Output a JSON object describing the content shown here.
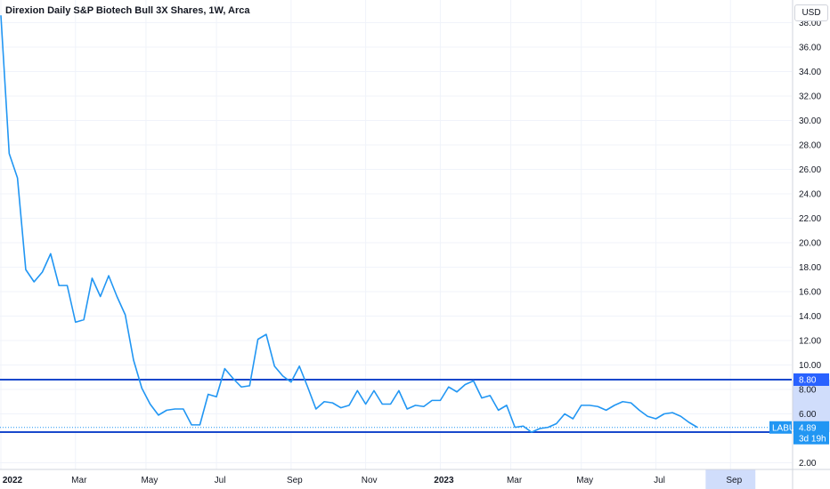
{
  "title": "Direxion Daily S&P Biotech Bull 3X Shares, 1W, Arca",
  "currency": "USD",
  "colors": {
    "line": "#2196f3",
    "hline": "#1848cc",
    "grid": "#f0f3fa",
    "zone": "#d0ddfb",
    "label_bg": "#2962ff"
  },
  "chart_data": {
    "type": "line",
    "title": "Direxion Daily S&P Biotech Bull 3X Shares, 1W, Arca",
    "ylim": [
      2,
      38
    ],
    "grid": true,
    "y_ticks": [
      "2.00",
      "6.00",
      "8.00",
      "10.00",
      "12.00",
      "14.00",
      "16.00",
      "18.00",
      "20.00",
      "22.00",
      "24.00",
      "26.00",
      "28.00",
      "30.00",
      "32.00",
      "34.00",
      "36.00",
      "38.00"
    ],
    "x_tick_labels": [
      {
        "label": "2022",
        "week": 0,
        "bold": true
      },
      {
        "label": "Mar",
        "week": 9
      },
      {
        "label": "May",
        "week": 17.5
      },
      {
        "label": "Jul",
        "week": 26
      },
      {
        "label": "Sep",
        "week": 35
      },
      {
        "label": "Nov",
        "week": 44
      },
      {
        "label": "2023",
        "week": 53,
        "bold": true
      },
      {
        "label": "Mar",
        "week": 61.5
      },
      {
        "label": "May",
        "week": 70
      },
      {
        "label": "Jul",
        "week": 79
      },
      {
        "label": "Sep",
        "week": 88
      }
    ],
    "series": [
      {
        "values": [
          38.6,
          27.3,
          25.3,
          17.8,
          16.8,
          17.6,
          19.1,
          16.5,
          16.5,
          13.5,
          13.7,
          17.1,
          15.6,
          17.3,
          15.6,
          14.1,
          10.4,
          8.1,
          6.8,
          5.9,
          6.3,
          6.4,
          6.4,
          5.1,
          5.1,
          7.6,
          7.4,
          9.7,
          8.9,
          8.2,
          8.3,
          12.1,
          12.5,
          9.9,
          9.1,
          8.6,
          9.9,
          8.2,
          6.4,
          7.0,
          6.9,
          6.5,
          6.7,
          7.9,
          6.8,
          7.9,
          6.8,
          6.8,
          7.9,
          6.4,
          6.7,
          6.6,
          7.1,
          7.1,
          8.2,
          7.8,
          8.4,
          8.7,
          7.3,
          7.5,
          6.3,
          6.7,
          4.9,
          5.0,
          4.5,
          4.8,
          4.9,
          5.2,
          6.0,
          5.6,
          6.7,
          6.7,
          6.6,
          6.3,
          6.7,
          7.0,
          6.9,
          6.3,
          5.8,
          5.6,
          6.0,
          6.1,
          5.8,
          5.3,
          4.9
        ]
      }
    ],
    "horizontal_lines": [
      {
        "value": 8.8,
        "label": "8.80"
      },
      {
        "value": 4.51,
        "label": "4.51"
      }
    ],
    "last_price": {
      "symbol": "LABU",
      "value": "4.89",
      "countdown": "3d 19h"
    }
  }
}
